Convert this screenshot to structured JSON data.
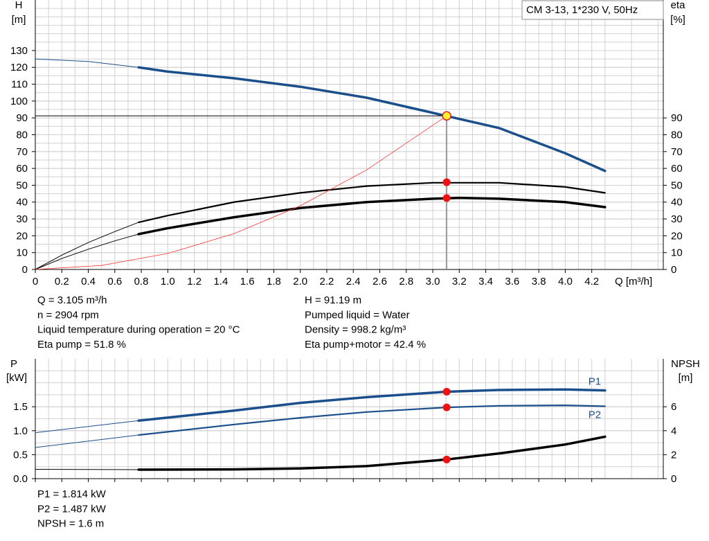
{
  "chart_data": [
    {
      "type": "line",
      "title": "CM 3-13, 1*230 V, 50Hz",
      "ylabel": "H",
      "yunit": "[m]",
      "y2label": "eta",
      "y2unit": "[%]",
      "xlabel": "Q [m³/h]",
      "xlim": [
        0,
        4.74
      ],
      "xticks": [
        0,
        0.2,
        0.4,
        0.6,
        0.8,
        {
          "value": 1,
          "label": "1.0"
        },
        1.2,
        1.4,
        1.6,
        1.8,
        {
          "value": 2,
          "label": "2.0"
        },
        2.2,
        2.4,
        2.6,
        2.8,
        {
          "value": 3,
          "label": "3.0"
        },
        3.2,
        3.4,
        3.6,
        3.8,
        {
          "value": 4,
          "label": "4.0"
        },
        4.2
      ],
      "ylim": [
        0,
        160
      ],
      "yticks": [
        0,
        10,
        20,
        30,
        40,
        50,
        60,
        70,
        80,
        90,
        100,
        110,
        120,
        130
      ],
      "y2lim": [
        0,
        160
      ],
      "y2ticks": [
        0,
        10,
        20,
        30,
        40,
        50,
        60,
        70,
        80,
        90
      ],
      "grid": true,
      "crosshair": true,
      "series": [
        {
          "color": "#1a4f8b",
          "width": 1,
          "x": [
            0,
            0.4,
            0.78
          ],
          "values": [
            125,
            123.5,
            120
          ]
        },
        {
          "color": "#1a4f8b",
          "width": 3.5,
          "x": [
            0.78,
            1.0,
            1.5,
            2.0,
            2.5,
            3.0,
            3.5,
            4.0,
            4.3
          ],
          "values": [
            120,
            117.5,
            113.5,
            108.5,
            102,
            93,
            84,
            69,
            58.5
          ]
        },
        {
          "color": "#000000",
          "width": 1,
          "axis": "y2",
          "x": [
            0,
            0.2,
            0.4,
            0.6,
            0.78
          ],
          "values": [
            0,
            8.5,
            16,
            22.5,
            28
          ]
        },
        {
          "color": "#000000",
          "width": 2.2,
          "axis": "y2",
          "x": [
            0.78,
            1.0,
            1.5,
            2.0,
            2.5,
            3.0,
            3.5,
            4.0,
            4.3
          ],
          "values": [
            28,
            32,
            40,
            45.5,
            49.5,
            51.5,
            51.5,
            49,
            45.5
          ]
        },
        {
          "color": "#000000",
          "width": 1,
          "axis": "y2",
          "x": [
            0,
            0.2,
            0.4,
            0.6,
            0.78
          ],
          "values": [
            0,
            6.5,
            12,
            17,
            21
          ]
        },
        {
          "color": "#000000",
          "width": 3.5,
          "axis": "y2",
          "x": [
            0.78,
            1.0,
            1.5,
            2.0,
            2.5,
            3.0,
            3.2,
            3.5,
            4.0,
            4.3
          ],
          "values": [
            21,
            24.5,
            31,
            36.5,
            40,
            42,
            42.5,
            42,
            40,
            37
          ]
        },
        {
          "color": "#ff3030",
          "width": 0.8,
          "x": [
            0,
            0.5,
            1.0,
            1.5,
            2.0,
            2.5,
            3.105
          ],
          "values": [
            0,
            2.4,
            9.5,
            21.3,
            37.8,
            59.1,
            91.19
          ]
        }
      ],
      "markers": [
        {
          "x": 3.105,
          "y": 91.19,
          "color": "#ffee33"
        },
        {
          "x": 3.105,
          "y": 51.8,
          "color": "#ee1111",
          "axis": "y2"
        },
        {
          "x": 3.105,
          "y": 42.4,
          "color": "#ee1111",
          "axis": "y2"
        }
      ],
      "annotations": [
        "Q = 3.105 m³/h",
        "n = 2904 rpm",
        "Liquid temperature during operation = 20 °C",
        "Eta pump = 51.8 %",
        "H = 91.19 m",
        "Pumped liquid = Water",
        "Density = 998.2 kg/m³",
        "Eta pump+motor = 42.4 %"
      ]
    },
    {
      "type": "line",
      "ylabel": "P",
      "yunit": "[kW]",
      "y2label": "NPSH",
      "y2unit": "[m]",
      "xlim": [
        0,
        4.74
      ],
      "ylim": [
        0,
        2.5
      ],
      "yticks": [
        {
          "value": 0,
          "label": "0.0"
        },
        0.5,
        {
          "value": 1,
          "label": "1.0"
        },
        1.5
      ],
      "y2lim": [
        0,
        10
      ],
      "y2ticks": [
        0,
        2,
        4,
        6
      ],
      "grid": true,
      "series": [
        {
          "color": "#1a4f8b",
          "width": 1,
          "x": [
            0,
            0.78
          ],
          "values": [
            0.96,
            1.21
          ]
        },
        {
          "name": "P1",
          "color": "#1a4f8b",
          "width": 3.5,
          "x": [
            0.78,
            1.5,
            2.0,
            2.5,
            3.105,
            3.5,
            4.0,
            4.3
          ],
          "values": [
            1.21,
            1.42,
            1.58,
            1.7,
            1.814,
            1.85,
            1.86,
            1.84
          ]
        },
        {
          "color": "#1a4f8b",
          "width": 1,
          "x": [
            0,
            0.78
          ],
          "values": [
            0.65,
            0.91
          ]
        },
        {
          "name": "P2",
          "color": "#1a4f8b",
          "width": 2.2,
          "x": [
            0.78,
            1.5,
            2.0,
            2.5,
            3.105,
            3.5,
            4.0,
            4.3
          ],
          "values": [
            0.91,
            1.13,
            1.27,
            1.39,
            1.487,
            1.52,
            1.53,
            1.51
          ]
        },
        {
          "color": "#000000",
          "width": 1,
          "axis": "y2",
          "x": [
            0,
            0.78
          ],
          "values": [
            0.78,
            0.75
          ]
        },
        {
          "color": "#000000",
          "width": 3.5,
          "axis": "y2",
          "x": [
            0.78,
            1.5,
            2.0,
            2.5,
            3.105,
            3.5,
            4.0,
            4.3
          ],
          "values": [
            0.75,
            0.77,
            0.85,
            1.05,
            1.6,
            2.1,
            2.85,
            3.5
          ]
        }
      ],
      "markers": [
        {
          "x": 3.105,
          "y": 1.814,
          "color": "#ee1111"
        },
        {
          "x": 3.105,
          "y": 1.487,
          "color": "#ee1111"
        },
        {
          "x": 3.105,
          "y": 1.6,
          "color": "#ee1111",
          "axis": "y2"
        }
      ],
      "annotations": [
        "P1 = 1.814 kW",
        "P2 = 1.487 kW",
        "NPSH = 1.6 m"
      ]
    }
  ]
}
